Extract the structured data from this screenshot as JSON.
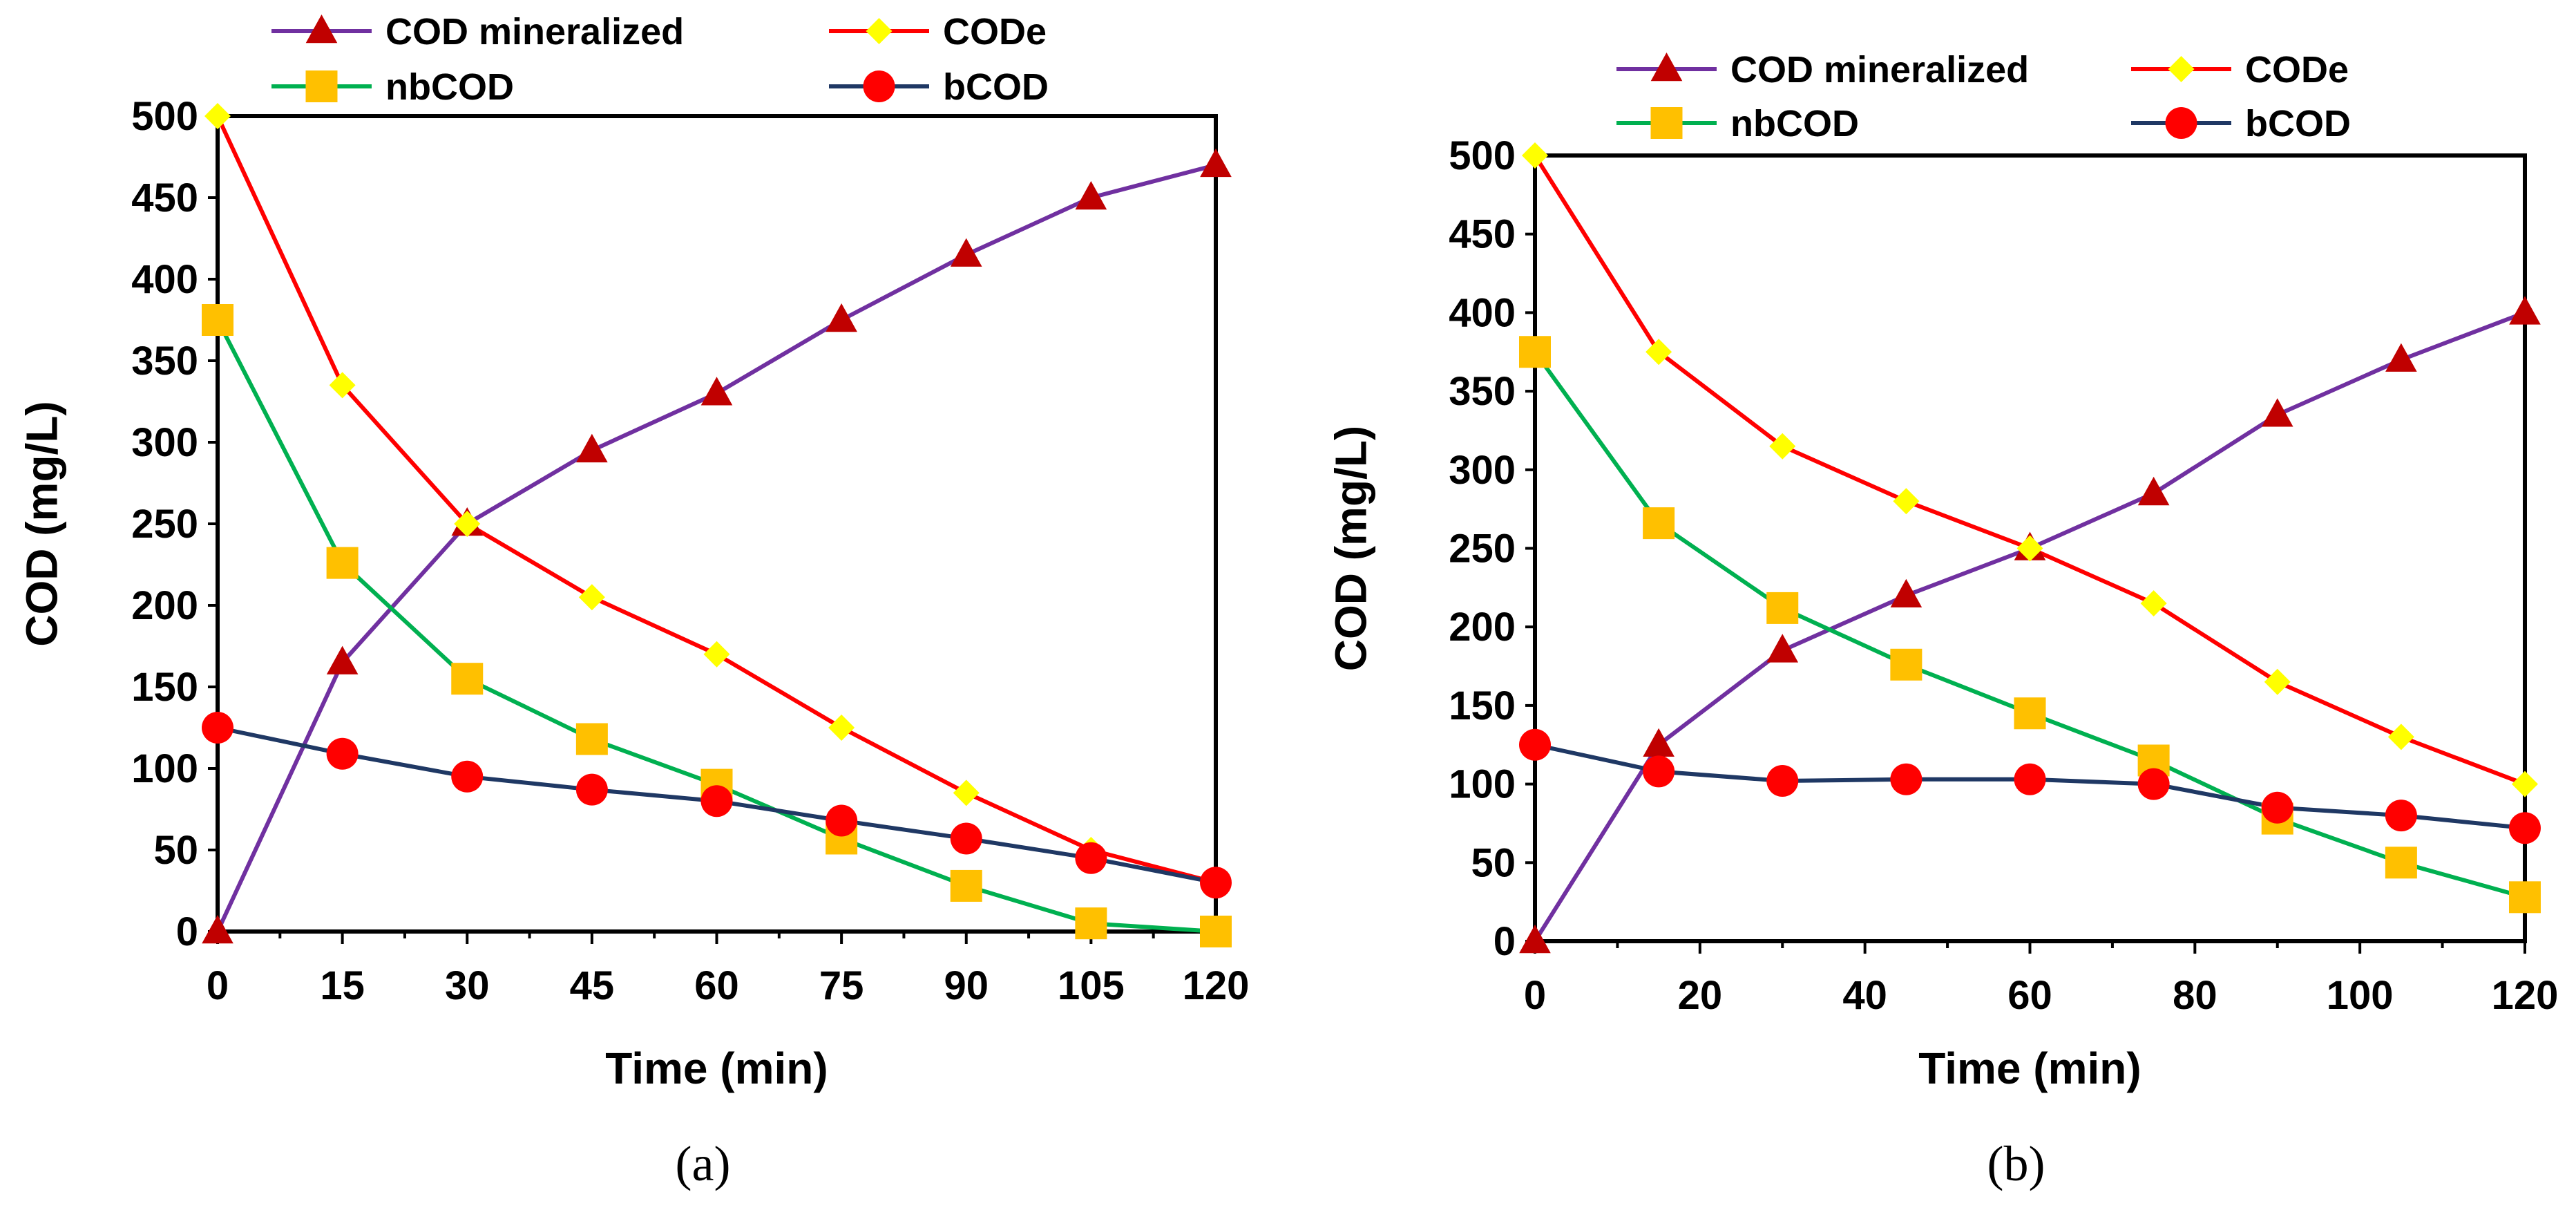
{
  "chart_data": [
    {
      "type": "line",
      "panel_label": "(a)",
      "xlabel": "Time (min)",
      "ylabel": "COD (mg/L)",
      "xlim": [
        0,
        120
      ],
      "ylim": [
        0,
        500
      ],
      "xticks": [
        0,
        15,
        30,
        45,
        60,
        75,
        90,
        105,
        120
      ],
      "yticks": [
        0,
        50,
        100,
        150,
        200,
        250,
        300,
        350,
        400,
        450,
        500
      ],
      "x": [
        0,
        15,
        30,
        45,
        60,
        75,
        90,
        105,
        120
      ],
      "series": [
        {
          "name": "COD mineralized",
          "color": "#7030A0",
          "marker": "triangle",
          "marker_color": "#C00000",
          "values": [
            0,
            165,
            250,
            295,
            330,
            375,
            415,
            450,
            470
          ]
        },
        {
          "name": "CODe",
          "color": "#FF0000",
          "marker": "diamond",
          "marker_color": "#FFFF00",
          "values": [
            500,
            335,
            250,
            205,
            170,
            125,
            85,
            50,
            30
          ]
        },
        {
          "name": "nbCOD",
          "color": "#00B050",
          "marker": "square",
          "marker_color": "#FFC000",
          "values": [
            375,
            226,
            155,
            118,
            90,
            57,
            28,
            5,
            0
          ]
        },
        {
          "name": "bCOD",
          "color": "#1F3864",
          "marker": "circle",
          "marker_color": "#FF0000",
          "values": [
            125,
            109,
            95,
            87,
            80,
            68,
            57,
            45,
            30
          ]
        }
      ]
    },
    {
      "type": "line",
      "panel_label": "(b)",
      "xlabel": "Time (min)",
      "ylabel": "COD (mg/L)",
      "xlim": [
        0,
        120
      ],
      "ylim": [
        0,
        500
      ],
      "xticks": [
        0,
        20,
        40,
        60,
        80,
        100,
        120
      ],
      "yticks": [
        0,
        50,
        100,
        150,
        200,
        250,
        300,
        350,
        400,
        450,
        500
      ],
      "x": [
        0,
        15,
        30,
        45,
        60,
        75,
        90,
        105,
        120
      ],
      "series": [
        {
          "name": "COD mineralized",
          "color": "#7030A0",
          "marker": "triangle",
          "marker_color": "#C00000",
          "values": [
            0,
            125,
            185,
            220,
            250,
            285,
            335,
            370,
            400
          ]
        },
        {
          "name": "CODe",
          "color": "#FF0000",
          "marker": "diamond",
          "marker_color": "#FFFF00",
          "values": [
            500,
            375,
            315,
            280,
            250,
            215,
            165,
            130,
            100
          ]
        },
        {
          "name": "nbCOD",
          "color": "#00B050",
          "marker": "square",
          "marker_color": "#FFC000",
          "values": [
            375,
            266,
            212,
            176,
            145,
            115,
            78,
            50,
            28
          ]
        },
        {
          "name": "bCOD",
          "color": "#1F3864",
          "marker": "circle",
          "marker_color": "#FF0000",
          "values": [
            125,
            108,
            102,
            103,
            103,
            100,
            85,
            80,
            72
          ]
        }
      ]
    }
  ]
}
